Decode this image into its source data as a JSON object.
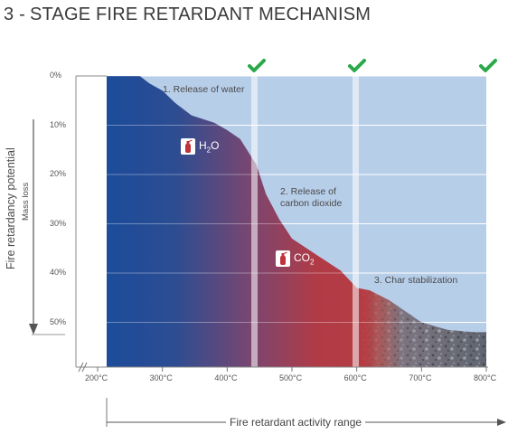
{
  "header": {
    "title_prefix": "3 -",
    "title": "STAGE FIRE RETARDANT MECHANISM"
  },
  "axes": {
    "y_title": "Fire retardancy potential",
    "y_subtitle": "Mass loss",
    "x_title": "Fire retardant activity range",
    "y_ticks": [
      "0%",
      "10%",
      "20%",
      "30%",
      "40%",
      "50%"
    ],
    "x_ticks": [
      "200°C",
      "300°C",
      "400°C",
      "500°C",
      "600°C",
      "700°C",
      "800°C"
    ]
  },
  "stages": [
    {
      "label": "1. Release of water"
    },
    {
      "label_line1": "2. Release of",
      "label_line2": "carbon dioxide"
    },
    {
      "label": "3. Char stabilization"
    }
  ],
  "badges": {
    "water": {
      "main": "H",
      "sub": "2",
      "tail": "O",
      "icon": "fire-extinguisher-icon"
    },
    "co2": {
      "main": "CO",
      "sub": "2",
      "icon": "fire-extinguisher-icon"
    }
  },
  "checkmark_icon": "checkmark-icon",
  "colors": {
    "background_region": "#b7cee9",
    "stage1": "#1f4f9a",
    "stage2": "#b23a44",
    "stage3": "#6a6f78",
    "checkmark": "#2aa84a"
  },
  "chart_data": {
    "type": "area",
    "x": [
      250,
      265,
      280,
      300,
      320,
      345,
      380,
      400,
      420,
      445,
      460,
      480,
      500,
      540,
      575,
      600,
      620,
      650,
      700,
      740,
      780,
      800
    ],
    "y": [
      0,
      0,
      1.5,
      3,
      5.5,
      8,
      9.5,
      11,
      12.8,
      18,
      24,
      29,
      33,
      36.5,
      39.5,
      43,
      43.5,
      45.5,
      50,
      51.5,
      52,
      52
    ],
    "xlim": [
      200,
      800
    ],
    "ylim": [
      0,
      58
    ],
    "y_reversed": true,
    "stage_boundaries": [
      440,
      595
    ]
  }
}
